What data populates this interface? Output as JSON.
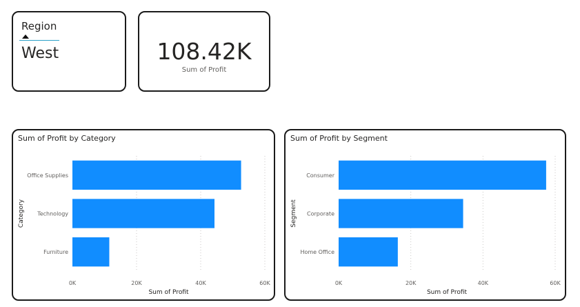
{
  "slicer": {
    "header": "Region",
    "selected_value": "West"
  },
  "kpi": {
    "value": "108.42K",
    "label": "Sum of Profit"
  },
  "colors": {
    "bar": "#118DFF",
    "card_border": "#1a1a1a",
    "slicer_underline": "#2aa0c8"
  },
  "chart_data": [
    {
      "type": "bar",
      "orientation": "horizontal",
      "title": "Sum of Profit by Category",
      "categories": [
        "Office Supplies",
        "Technology",
        "Furniture"
      ],
      "values": [
        52600,
        44300,
        11500
      ],
      "xlabel": "Sum of Profit",
      "ylabel": "Category",
      "xlim": [
        0,
        60000
      ],
      "ticks": [
        0,
        20000,
        40000,
        60000
      ],
      "tick_labels": [
        "0K",
        "20K",
        "40K",
        "60K"
      ],
      "grid": true
    },
    {
      "type": "bar",
      "orientation": "horizontal",
      "title": "Sum of Profit by Segment",
      "categories": [
        "Consumer",
        "Corporate",
        "Home Office"
      ],
      "values": [
        57500,
        34500,
        16400
      ],
      "xlabel": "Sum of Profit",
      "ylabel": "Segment",
      "xlim": [
        0,
        60000
      ],
      "ticks": [
        0,
        20000,
        40000,
        60000
      ],
      "tick_labels": [
        "0K",
        "20K",
        "40K",
        "60K"
      ],
      "grid": true
    }
  ]
}
